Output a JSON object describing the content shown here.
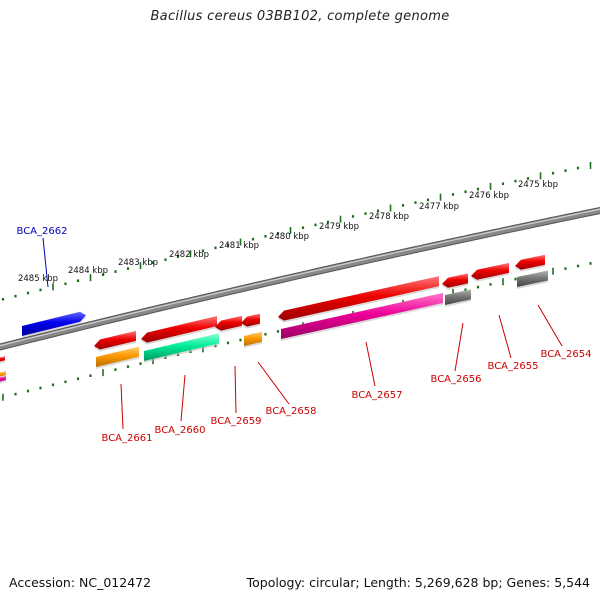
{
  "title": "Bacillus cereus 03BB102, complete genome",
  "footer": {
    "accession": "Accession: NC_012472",
    "summary": "Topology: circular; Length: 5,269,628 bp; Genes: 5,544"
  },
  "colors": {
    "backbone": "#888888",
    "tick": "#1e6e1e",
    "label_red": "#cc0000",
    "label_blue": "#0000bb",
    "feature_red": "#ee0000",
    "feature_blue": "#0000ee",
    "feature_orange": "#ff9900",
    "feature_green": "#00ee99",
    "feature_magenta": "#ee0099",
    "feature_gray": "#777777"
  },
  "kbp_labels": [
    "2485 kbp",
    "2484 kbp",
    "2483 kbp",
    "2482 kbp",
    "2481 kbp",
    "2480 kbp",
    "2479 kbp",
    "2478 kbp",
    "2477 kbp",
    "2476 kbp",
    "2475 kbp"
  ],
  "gene_labels": [
    "BCA_2662",
    "BCA_2661",
    "BCA_2660",
    "BCA_2659",
    "BCA_2658",
    "BCA_2657",
    "BCA_2656",
    "BCA_2655",
    "BCA_2654"
  ]
}
